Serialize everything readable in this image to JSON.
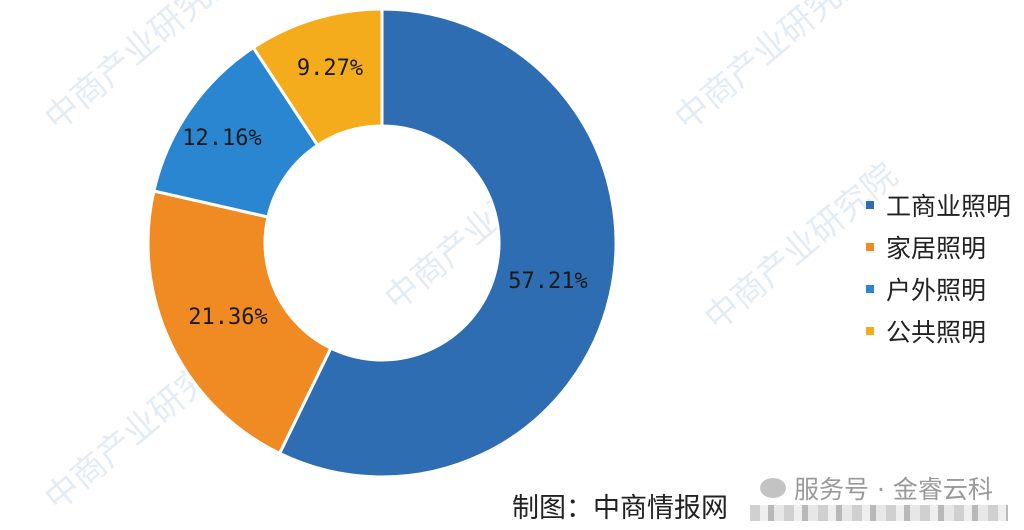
{
  "chart_data": {
    "type": "pie",
    "variant": "donut",
    "start": "top, clockwise",
    "categories": [
      "工商业照明",
      "家居照明",
      "户外照明",
      "公共照明"
    ],
    "values": [
      57.21,
      21.36,
      12.16,
      9.27
    ],
    "data_labels": [
      "57.21%",
      "21.36%",
      "12.16%",
      "9.27%"
    ],
    "colors": [
      "#2f6db3",
      "#f08a22",
      "#2b86d1",
      "#f5ac1c"
    ],
    "legend_position": "right"
  },
  "credit": "制图：中商情报网",
  "service_watermark": "服务号 · 金睿云科",
  "watermark": "中商产业研究院"
}
